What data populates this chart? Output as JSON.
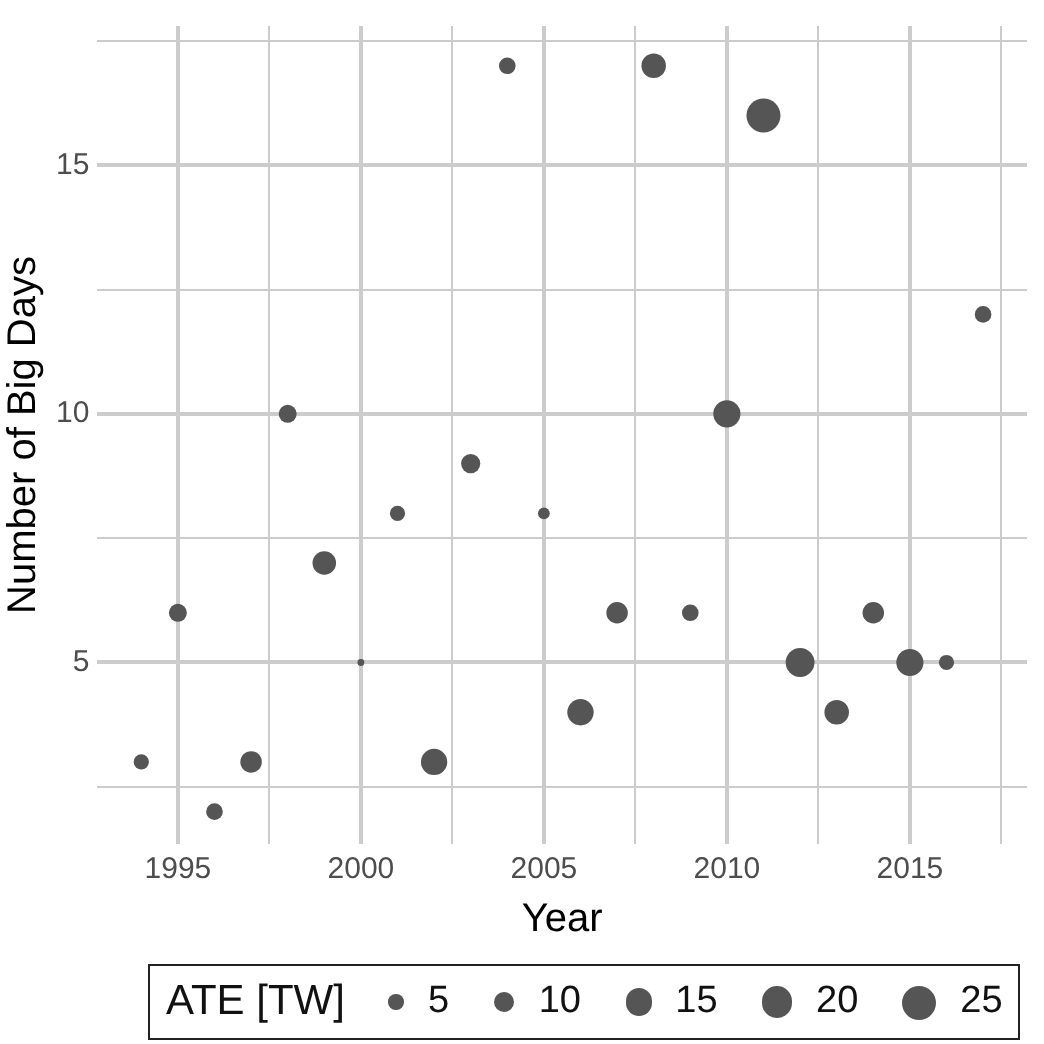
{
  "chart_data": {
    "type": "bubble",
    "xlabel": "Year",
    "ylabel": "Number of Big Days",
    "legend_title": "ATE [TW]",
    "grid": true,
    "color": "#555555",
    "x": [
      1994,
      1995,
      1996,
      1997,
      1998,
      1999,
      2000,
      2001,
      2002,
      2003,
      2004,
      2005,
      2006,
      2007,
      2008,
      2009,
      2010,
      2011,
      2012,
      2013,
      2014,
      2015,
      2016,
      2017
    ],
    "values": [
      3,
      6,
      2,
      3,
      10,
      7,
      5,
      8,
      3,
      9,
      17,
      8,
      4,
      6,
      17,
      6,
      10,
      16,
      5,
      4,
      6,
      5,
      5,
      12
    ],
    "sizes": [
      5,
      7,
      6,
      10,
      7,
      12,
      1,
      5,
      15,
      8,
      6,
      3,
      15,
      10,
      13,
      6,
      16,
      25,
      18,
      13,
      10,
      16,
      5,
      6
    ],
    "size_legend": [
      5,
      10,
      15,
      20,
      25
    ],
    "xlim": [
      1992.8,
      2018.2
    ],
    "ylim": [
      1.35,
      17.8
    ],
    "xticks": [
      1995,
      {
        "value": 1997.5,
        "label": null
      },
      2000,
      {
        "value": 2002.5,
        "label": null
      },
      2005,
      {
        "value": 2007.5,
        "label": null
      },
      2010,
      {
        "value": 2012.5,
        "label": null
      },
      2015,
      {
        "value": 2017.5,
        "label": null
      }
    ],
    "yticks": [
      {
        "value": 2.5,
        "label": null
      },
      5,
      {
        "value": 7.5,
        "label": null
      },
      10,
      {
        "value": 12.5,
        "label": null
      },
      15,
      {
        "value": 17.5,
        "label": null
      }
    ]
  }
}
